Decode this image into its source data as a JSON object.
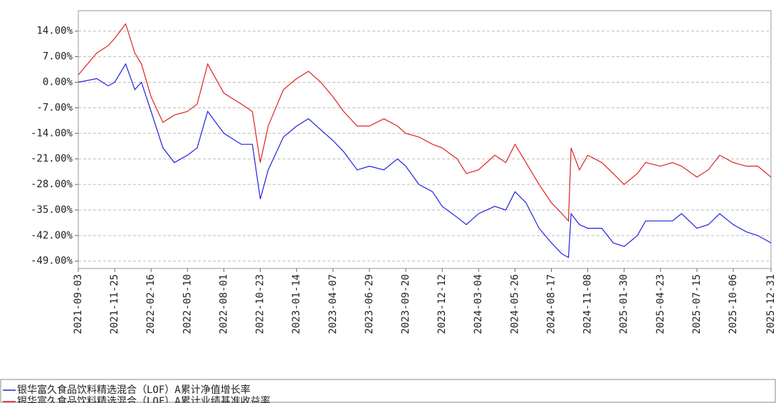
{
  "chart_data": {
    "type": "line",
    "x": [
      "2021-09-03",
      "2021-10-15",
      "2021-11-10",
      "2021-11-25",
      "2021-12-20",
      "2022-01-10",
      "2022-01-25",
      "2022-02-16",
      "2022-03-15",
      "2022-04-10",
      "2022-05-10",
      "2022-06-01",
      "2022-06-25",
      "2022-08-01",
      "2022-09-10",
      "2022-10-05",
      "2022-10-23",
      "2022-11-10",
      "2022-12-15",
      "2023-01-14",
      "2023-02-10",
      "2023-03-10",
      "2023-04-07",
      "2023-05-01",
      "2023-06-01",
      "2023-06-29",
      "2023-08-01",
      "2023-09-01",
      "2023-09-20",
      "2023-10-20",
      "2023-11-20",
      "2023-12-12",
      "2024-01-15",
      "2024-02-05",
      "2024-03-04",
      "2024-04-10",
      "2024-05-05",
      "2024-05-26",
      "2024-06-20",
      "2024-07-20",
      "2024-08-17",
      "2024-09-10",
      "2024-09-25",
      "2024-10-01",
      "2024-10-20",
      "2024-11-08",
      "2024-12-10",
      "2025-01-05",
      "2025-01-30",
      "2025-03-01",
      "2025-03-20",
      "2025-04-23",
      "2025-05-20",
      "2025-06-10",
      "2025-07-15",
      "2025-08-10",
      "2025-09-05",
      "2025-10-06",
      "2025-11-05",
      "2025-12-01",
      "2025-12-31"
    ],
    "series": [
      {
        "name": "银华富久食品饮料精选混合（LOF）A累计净值增长率",
        "color": "#2020e0",
        "values": [
          0,
          1,
          -1,
          0,
          5,
          -2,
          0,
          -8,
          -18,
          -22,
          -20,
          -18,
          -8,
          -14,
          -17,
          -17,
          -32,
          -24,
          -15,
          -12,
          -10,
          -13,
          -16,
          -19,
          -24,
          -23,
          -24,
          -21,
          -23,
          -28,
          -30,
          -34,
          -37,
          -39,
          -36,
          -34,
          -35,
          -30,
          -33,
          -40,
          -44,
          -47,
          -48,
          -36,
          -39,
          -40,
          -40,
          -44,
          -45,
          -42,
          -38,
          -38,
          -38,
          -36,
          -40,
          -39,
          -36,
          -39,
          -41,
          -42,
          -44
        ]
      },
      {
        "name": "银华富久食品饮料精选混合（LOF）A累计业绩基准收益率",
        "color": "#e02020",
        "values": [
          2,
          8,
          10,
          12,
          16,
          8,
          5,
          -4,
          -11,
          -9,
          -8,
          -6,
          5,
          -3,
          -6,
          -8,
          -22,
          -12,
          -2,
          1,
          3,
          0,
          -4,
          -8,
          -12,
          -12,
          -10,
          -12,
          -14,
          -15,
          -17,
          -18,
          -21,
          -25,
          -24,
          -20,
          -22,
          -17,
          -22,
          -28,
          -33,
          -36,
          -38,
          -18,
          -24,
          -20,
          -22,
          -25,
          -28,
          -25,
          -22,
          -23,
          -22,
          -23,
          -26,
          -24,
          -20,
          -22,
          -23,
          -23,
          -26
        ]
      }
    ],
    "xlim": [
      "2021-09-03",
      "2025-12-31"
    ],
    "xticks": [
      "2021-09-03",
      "2021-11-25",
      "2022-02-16",
      "2022-05-10",
      "2022-08-01",
      "2022-10-23",
      "2023-01-14",
      "2023-04-07",
      "2023-06-29",
      "2023-09-20",
      "2023-12-12",
      "2024-03-04",
      "2024-05-26",
      "2024-08-17",
      "2024-11-08",
      "2025-01-30",
      "2025-04-23",
      "2025-07-15",
      "2025-10-06",
      "2025-12-31"
    ],
    "ylim": [
      -51,
      19.6
    ],
    "yticks": [
      {
        "value": 14,
        "label": "14.00%"
      },
      {
        "value": 7,
        "label": "7.00%"
      },
      {
        "value": 0,
        "label": "0.00%"
      },
      {
        "value": -7,
        "label": "-7.00%"
      },
      {
        "value": -14,
        "label": "-14.00%"
      },
      {
        "value": -21,
        "label": "-21.00%"
      },
      {
        "value": -28,
        "label": "-28.00%"
      },
      {
        "value": -35,
        "label": "-35.00%"
      },
      {
        "value": -42,
        "label": "-42.00%"
      },
      {
        "value": -49,
        "label": "-49.00%"
      }
    ],
    "grid": true
  }
}
